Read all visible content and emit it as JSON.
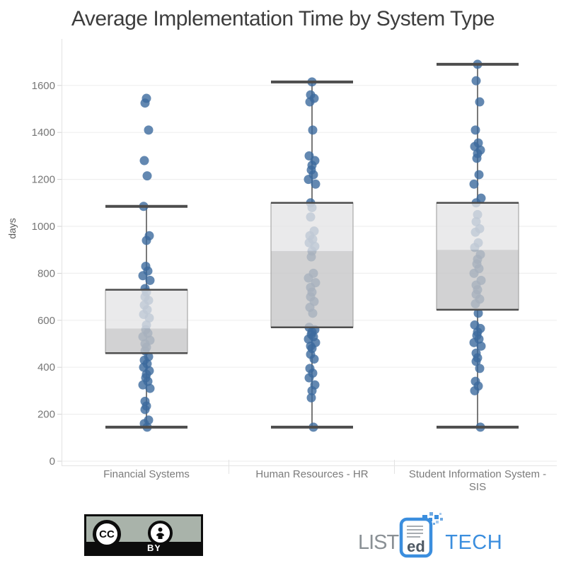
{
  "title": "Average Implementation Time by System Type",
  "chart_data": {
    "type": "boxplot",
    "title": "Average Implementation Time by System Type",
    "xlabel": "",
    "ylabel": "days",
    "ylim": [
      0,
      1750
    ],
    "yticks": [
      0,
      200,
      400,
      600,
      800,
      1000,
      1200,
      1400,
      1600
    ],
    "grid": true,
    "legend": "none",
    "categories": [
      "Financial Systems",
      "Human Resources - HR",
      "Student Information System - SIS"
    ],
    "category_label_lines": [
      [
        "Financial Systems"
      ],
      [
        "Human Resources - HR"
      ],
      [
        "Student Information System -",
        "SIS"
      ]
    ],
    "series": [
      {
        "name": "Financial Systems",
        "whisker_low": 145,
        "q1": 460,
        "median": 565,
        "q3": 730,
        "whisker_high": 1085,
        "outliers": [
          1545,
          1525,
          1410,
          1280,
          1215
        ],
        "points": [
          1545,
          1525,
          1410,
          1280,
          1215,
          1085,
          960,
          940,
          830,
          810,
          790,
          770,
          735,
          720,
          700,
          685,
          665,
          645,
          625,
          610,
          580,
          560,
          545,
          530,
          515,
          500,
          485,
          470,
          445,
          430,
          415,
          400,
          385,
          370,
          355,
          340,
          325,
          310,
          255,
          235,
          220,
          175,
          160,
          145
        ]
      },
      {
        "name": "Human Resources - HR",
        "whisker_low": 145,
        "q1": 570,
        "median": 895,
        "q3": 1100,
        "whisker_high": 1615,
        "outliers": [],
        "points": [
          1615,
          1560,
          1545,
          1530,
          1410,
          1300,
          1280,
          1260,
          1240,
          1220,
          1200,
          1180,
          1100,
          1080,
          1040,
          980,
          960,
          945,
          930,
          915,
          895,
          870,
          800,
          780,
          760,
          740,
          720,
          700,
          680,
          655,
          630,
          570,
          560,
          550,
          540,
          530,
          520,
          505,
          490,
          480,
          455,
          435,
          395,
          375,
          355,
          325,
          300,
          270,
          145
        ]
      },
      {
        "name": "Student Information System - SIS",
        "whisker_low": 145,
        "q1": 645,
        "median": 900,
        "q3": 1100,
        "whisker_high": 1690,
        "outliers": [],
        "points": [
          1690,
          1620,
          1530,
          1410,
          1355,
          1340,
          1325,
          1310,
          1290,
          1220,
          1180,
          1120,
          1100,
          1050,
          1020,
          990,
          975,
          930,
          910,
          880,
          860,
          840,
          820,
          800,
          770,
          750,
          730,
          710,
          690,
          670,
          630,
          580,
          565,
          550,
          535,
          520,
          505,
          490,
          460,
          440,
          425,
          395,
          340,
          320,
          300,
          145
        ]
      }
    ],
    "colors": {
      "point": "#3c6a9d",
      "box_upper": "#e4e4e5",
      "box_lower": "#c5c5c7",
      "box_side": "#9a9a9a",
      "box_border": "#4d4d4d",
      "whisker": "#4d4d4d",
      "grid": "#efefef",
      "axis": "#e3e3e3",
      "tick": "#d2d2d2",
      "tick_label": "#767676",
      "category_label": "#7b7b7b",
      "ylabel_color": "#5a5a5a",
      "title_color": "#3d3d3d"
    }
  },
  "footer": {
    "cc_badge": {
      "cc_label": "CC",
      "by_label": "BY"
    },
    "logo": {
      "list": "LIST",
      "ed": "ed",
      "tech": "TECH",
      "accent": "#3b8ede",
      "gray": "#8a9095"
    }
  }
}
